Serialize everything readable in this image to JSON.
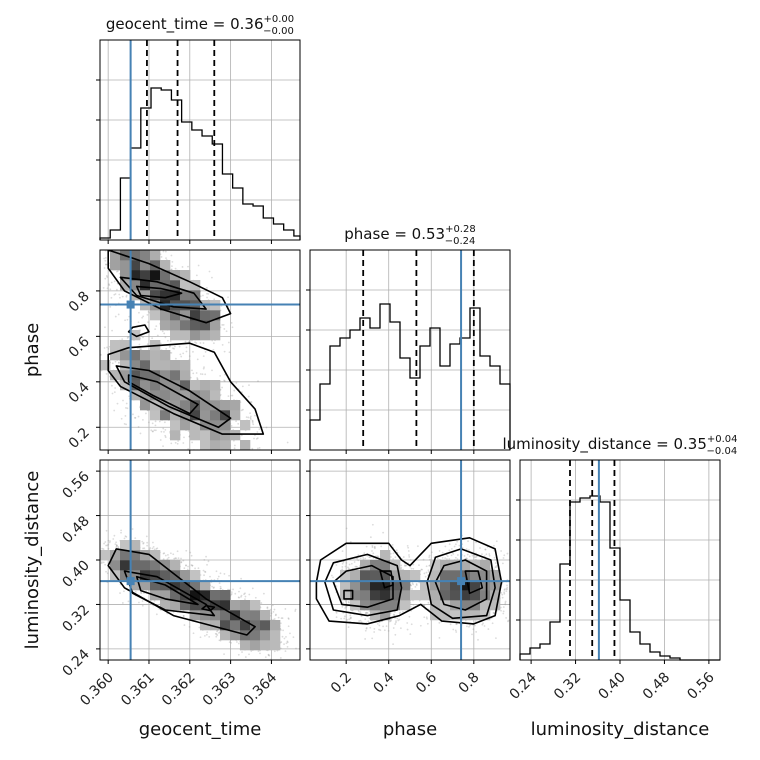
{
  "chart_data": [
    {
      "type": "histogram",
      "panel": "1d",
      "param": "geocent_time",
      "title": {
        "param": "geocent_time",
        "median": "0.36",
        "plus": "+0.00",
        "minus": "−0.00"
      },
      "xlim": [
        0.3598,
        0.3647
      ],
      "bin_edges": [
        0.3598,
        0.36005,
        0.3603,
        0.36055,
        0.3608,
        0.36105,
        0.3613,
        0.36155,
        0.3618,
        0.36205,
        0.3623,
        0.36255,
        0.3628,
        0.36305,
        0.3633,
        0.36355,
        0.3638,
        0.36405,
        0.3643,
        0.36455,
        0.3647
      ],
      "counts": [
        0.01,
        0.05,
        0.31,
        0.46,
        0.66,
        0.76,
        0.75,
        0.7,
        0.59,
        0.55,
        0.52,
        0.48,
        0.33,
        0.26,
        0.18,
        0.17,
        0.11,
        0.08,
        0.05,
        0.02
      ],
      "quantiles": [
        0.36095,
        0.3617,
        0.3626
      ],
      "truth": 0.36055,
      "colors": {
        "hist": "#000000",
        "quantile": "#000000",
        "truth": "#4682b4"
      }
    },
    {
      "type": "histogram",
      "panel": "1d",
      "param": "phase",
      "title": {
        "param": "phase",
        "median": "0.53",
        "plus": "+0.28",
        "minus": "−0.24"
      },
      "xlim": [
        0.03,
        0.97
      ],
      "bin_edges": [
        0.03,
        0.077,
        0.124,
        0.171,
        0.218,
        0.265,
        0.312,
        0.359,
        0.406,
        0.453,
        0.5,
        0.547,
        0.594,
        0.641,
        0.688,
        0.735,
        0.782,
        0.829,
        0.876,
        0.923,
        0.97
      ],
      "counts": [
        0.15,
        0.33,
        0.52,
        0.56,
        0.6,
        0.66,
        0.61,
        0.73,
        0.64,
        0.46,
        0.36,
        0.52,
        0.61,
        0.42,
        0.53,
        0.56,
        0.71,
        0.47,
        0.42,
        0.33
      ],
      "quantiles": [
        0.28,
        0.53,
        0.8
      ],
      "truth": 0.74,
      "colors": {
        "hist": "#000000",
        "quantile": "#000000",
        "truth": "#4682b4"
      }
    },
    {
      "type": "histogram",
      "panel": "1d",
      "param": "luminosity_distance",
      "title": {
        "param": "luminosity_distance",
        "median": "0.35",
        "plus": "+0.04",
        "minus": "−0.04"
      },
      "xlim": [
        0.22,
        0.58
      ],
      "bin_edges": [
        0.22,
        0.238,
        0.256,
        0.274,
        0.292,
        0.31,
        0.328,
        0.346,
        0.364,
        0.382,
        0.4,
        0.418,
        0.436,
        0.454,
        0.472,
        0.49,
        0.508,
        0.526,
        0.544,
        0.562,
        0.58
      ],
      "counts": [
        0.03,
        0.06,
        0.08,
        0.19,
        0.48,
        0.79,
        0.81,
        0.82,
        0.79,
        0.56,
        0.3,
        0.14,
        0.08,
        0.04,
        0.02,
        0.01,
        0.0,
        0.0,
        0.0,
        0.0
      ],
      "quantiles": [
        0.31,
        0.35,
        0.39
      ],
      "truth": 0.362,
      "colors": {
        "hist": "#000000",
        "quantile": "#000000",
        "truth": "#4682b4"
      }
    },
    {
      "type": "scatter-contour",
      "panel": "2d",
      "x_param": "geocent_time",
      "y_param": "phase",
      "xlim": [
        0.3598,
        0.3647
      ],
      "ylim": [
        0.1,
        0.98
      ],
      "truth": [
        0.36055,
        0.74
      ],
      "modes": [
        {
          "x0": 0.3603,
          "y0": 0.96,
          "x1": 0.3624,
          "y1": 0.64,
          "w": 0.00034,
          "wy": 0.06,
          "n": 1200
        },
        {
          "x0": 0.3603,
          "y0": 0.5,
          "x1": 0.3632,
          "y1": 0.17,
          "w": 0.0004,
          "wy": 0.09,
          "n": 1300
        }
      ],
      "contours": [
        [
          [
            0.36,
            0.98
          ],
          [
            0.361,
            0.92
          ],
          [
            0.362,
            0.84
          ],
          [
            0.3628,
            0.77
          ],
          [
            0.363,
            0.7
          ],
          [
            0.3624,
            0.66
          ],
          [
            0.3613,
            0.72
          ],
          [
            0.3604,
            0.8
          ],
          [
            0.36,
            0.9
          ],
          [
            0.36,
            0.98
          ]
        ],
        [
          [
            0.3603,
            0.86
          ],
          [
            0.3612,
            0.84
          ],
          [
            0.3621,
            0.79
          ],
          [
            0.3624,
            0.72
          ],
          [
            0.3616,
            0.73
          ],
          [
            0.3607,
            0.78
          ],
          [
            0.3603,
            0.86
          ]
        ],
        [
          [
            0.3607,
            0.82
          ],
          [
            0.3613,
            0.81
          ],
          [
            0.3618,
            0.79
          ],
          [
            0.3614,
            0.77
          ],
          [
            0.3608,
            0.78
          ],
          [
            0.3607,
            0.82
          ]
        ],
        [
          [
            0.3606,
            0.64
          ],
          [
            0.3609,
            0.65
          ],
          [
            0.361,
            0.62
          ],
          [
            0.3607,
            0.6
          ],
          [
            0.3605,
            0.62
          ],
          [
            0.3606,
            0.64
          ]
        ],
        [
          [
            0.36,
            0.52
          ],
          [
            0.3605,
            0.55
          ],
          [
            0.362,
            0.57
          ],
          [
            0.3626,
            0.53
          ],
          [
            0.363,
            0.4
          ],
          [
            0.3636,
            0.28
          ],
          [
            0.3638,
            0.17
          ],
          [
            0.3628,
            0.17
          ],
          [
            0.3616,
            0.26
          ],
          [
            0.3603,
            0.38
          ],
          [
            0.36,
            0.45
          ],
          [
            0.36,
            0.52
          ]
        ],
        [
          [
            0.3602,
            0.47
          ],
          [
            0.361,
            0.45
          ],
          [
            0.362,
            0.36
          ],
          [
            0.363,
            0.24
          ],
          [
            0.3627,
            0.2
          ],
          [
            0.3615,
            0.29
          ],
          [
            0.3604,
            0.4
          ],
          [
            0.3602,
            0.47
          ]
        ],
        [
          [
            0.3605,
            0.43
          ],
          [
            0.3612,
            0.4
          ],
          [
            0.3622,
            0.3
          ],
          [
            0.362,
            0.26
          ],
          [
            0.3611,
            0.34
          ],
          [
            0.3605,
            0.4
          ],
          [
            0.3605,
            0.43
          ]
        ]
      ]
    },
    {
      "type": "scatter-contour",
      "panel": "2d",
      "x_param": "geocent_time",
      "y_param": "luminosity_distance",
      "xlim": [
        0.3598,
        0.3647
      ],
      "ylim": [
        0.22,
        0.58
      ],
      "truth": [
        0.36055,
        0.362
      ],
      "modes": [
        {
          "x0": 0.3602,
          "y0": 0.41,
          "x1": 0.364,
          "y1": 0.26,
          "w": 0.00035,
          "wy": 0.02,
          "n": 2400
        }
      ],
      "contours": [
        [
          [
            0.3602,
            0.42
          ],
          [
            0.361,
            0.41
          ],
          [
            0.3624,
            0.33
          ],
          [
            0.3636,
            0.28
          ],
          [
            0.3634,
            0.265
          ],
          [
            0.3616,
            0.3
          ],
          [
            0.3604,
            0.35
          ],
          [
            0.36,
            0.39
          ],
          [
            0.3602,
            0.42
          ]
        ],
        [
          [
            0.3604,
            0.38
          ],
          [
            0.3612,
            0.37
          ],
          [
            0.3624,
            0.32
          ],
          [
            0.3626,
            0.3
          ],
          [
            0.3614,
            0.31
          ],
          [
            0.3606,
            0.34
          ],
          [
            0.3604,
            0.38
          ]
        ],
        [
          [
            0.3607,
            0.37
          ],
          [
            0.3614,
            0.355
          ],
          [
            0.3622,
            0.32
          ],
          [
            0.3614,
            0.33
          ],
          [
            0.3608,
            0.345
          ],
          [
            0.3607,
            0.37
          ]
        ],
        [
          [
            0.3624,
            0.318
          ],
          [
            0.3626,
            0.315
          ],
          [
            0.3625,
            0.309
          ],
          [
            0.3623,
            0.312
          ],
          [
            0.3624,
            0.318
          ]
        ]
      ]
    },
    {
      "type": "scatter-contour",
      "panel": "2d",
      "x_param": "phase",
      "y_param": "luminosity_distance",
      "xlim": [
        0.03,
        0.97
      ],
      "ylim": [
        0.22,
        0.58
      ],
      "truth": [
        0.74,
        0.362
      ],
      "modes": [
        {
          "x0": 0.27,
          "y0": 0.35,
          "x1": 0.44,
          "y1": 0.35,
          "w": 0.07,
          "wy": 0.03,
          "n": 1400
        },
        {
          "x0": 0.66,
          "y0": 0.35,
          "x1": 0.86,
          "y1": 0.35,
          "w": 0.07,
          "wy": 0.03,
          "n": 1400
        }
      ],
      "contours": [
        [
          [
            0.06,
            0.36
          ],
          [
            0.08,
            0.4
          ],
          [
            0.2,
            0.43
          ],
          [
            0.4,
            0.43
          ],
          [
            0.46,
            0.4
          ],
          [
            0.5,
            0.39
          ],
          [
            0.55,
            0.41
          ],
          [
            0.6,
            0.43
          ],
          [
            0.78,
            0.44
          ],
          [
            0.9,
            0.42
          ],
          [
            0.93,
            0.36
          ],
          [
            0.9,
            0.3
          ],
          [
            0.8,
            0.285
          ],
          [
            0.65,
            0.29
          ],
          [
            0.55,
            0.32
          ],
          [
            0.5,
            0.31
          ],
          [
            0.45,
            0.3
          ],
          [
            0.3,
            0.285
          ],
          [
            0.12,
            0.29
          ],
          [
            0.06,
            0.33
          ],
          [
            0.06,
            0.36
          ]
        ],
        [
          [
            0.1,
            0.36
          ],
          [
            0.14,
            0.395
          ],
          [
            0.3,
            0.41
          ],
          [
            0.44,
            0.39
          ],
          [
            0.46,
            0.35
          ],
          [
            0.44,
            0.31
          ],
          [
            0.3,
            0.3
          ],
          [
            0.14,
            0.31
          ],
          [
            0.1,
            0.36
          ]
        ],
        [
          [
            0.58,
            0.36
          ],
          [
            0.62,
            0.405
          ],
          [
            0.74,
            0.42
          ],
          [
            0.88,
            0.4
          ],
          [
            0.9,
            0.35
          ],
          [
            0.86,
            0.3
          ],
          [
            0.7,
            0.295
          ],
          [
            0.6,
            0.32
          ],
          [
            0.58,
            0.36
          ]
        ],
        [
          [
            0.14,
            0.36
          ],
          [
            0.2,
            0.38
          ],
          [
            0.32,
            0.39
          ],
          [
            0.42,
            0.37
          ],
          [
            0.42,
            0.33
          ],
          [
            0.3,
            0.315
          ],
          [
            0.18,
            0.32
          ],
          [
            0.14,
            0.36
          ]
        ],
        [
          [
            0.62,
            0.36
          ],
          [
            0.66,
            0.39
          ],
          [
            0.76,
            0.4
          ],
          [
            0.86,
            0.38
          ],
          [
            0.86,
            0.33
          ],
          [
            0.76,
            0.31
          ],
          [
            0.66,
            0.32
          ],
          [
            0.62,
            0.36
          ]
        ],
        [
          [
            0.36,
            0.38
          ],
          [
            0.41,
            0.38
          ],
          [
            0.42,
            0.355
          ],
          [
            0.38,
            0.35
          ],
          [
            0.36,
            0.38
          ]
        ],
        [
          [
            0.76,
            0.38
          ],
          [
            0.82,
            0.38
          ],
          [
            0.84,
            0.35
          ],
          [
            0.78,
            0.34
          ],
          [
            0.76,
            0.38
          ]
        ],
        [
          [
            0.19,
            0.345
          ],
          [
            0.23,
            0.345
          ],
          [
            0.23,
            0.33
          ],
          [
            0.19,
            0.33
          ],
          [
            0.19,
            0.345
          ]
        ]
      ]
    }
  ],
  "axes": {
    "geocent_time": {
      "label": "geocent_time",
      "ticks": [
        0.36,
        0.361,
        0.362,
        0.363,
        0.364
      ],
      "tick_labels": [
        "0.360",
        "0.361",
        "0.362",
        "0.363",
        "0.364"
      ]
    },
    "phase": {
      "label": "phase",
      "ticks": [
        0.2,
        0.4,
        0.6,
        0.8
      ],
      "tick_labels": [
        "0.2",
        "0.4",
        "0.6",
        "0.8"
      ]
    },
    "luminosity_distance": {
      "label": "luminosity_distance",
      "ticks": [
        0.24,
        0.32,
        0.4,
        0.48,
        0.56
      ],
      "tick_labels": [
        "0.24",
        "0.32",
        "0.40",
        "0.48",
        "0.56"
      ]
    }
  },
  "grid": true,
  "colors": {
    "truth": "#4682b4",
    "grid": "#b0b0b0",
    "scatter": "#9a9a9a",
    "contour": "#000000"
  }
}
